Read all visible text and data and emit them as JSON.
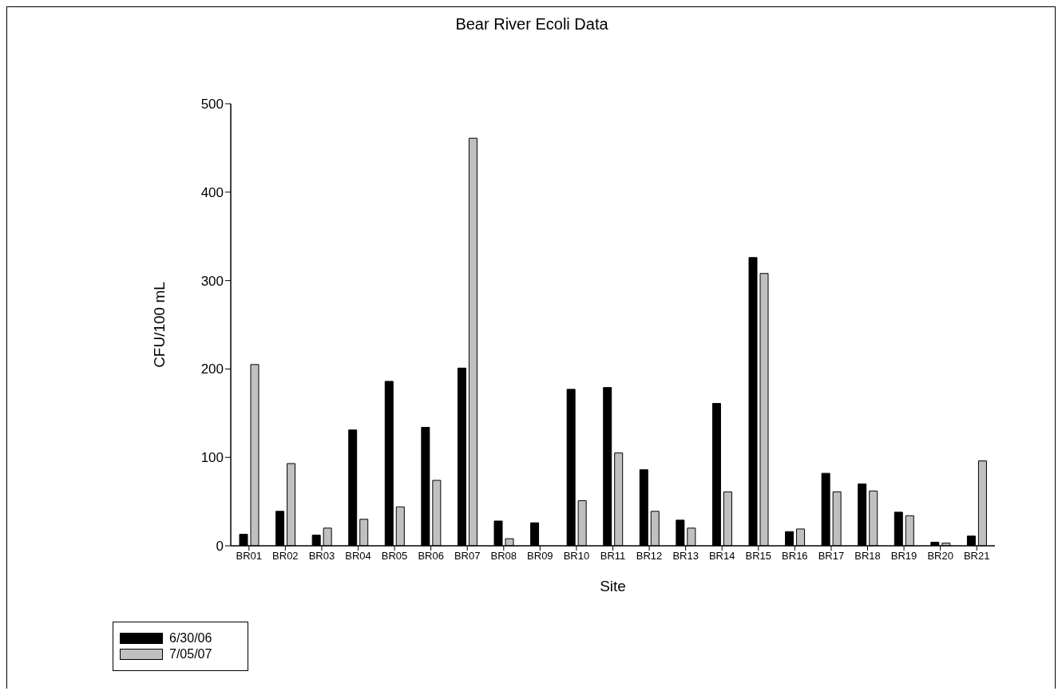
{
  "chart_data": {
    "type": "bar",
    "title": "Bear River Ecoli Data",
    "xlabel": "Site",
    "ylabel": "CFU/100 mL",
    "categories": [
      "BR01",
      "BR02",
      "BR03",
      "BR04",
      "BR05",
      "BR06",
      "BR07",
      "BR08",
      "BR09",
      "BR10",
      "BR11",
      "BR12",
      "BR13",
      "BR14",
      "BR15",
      "BR16",
      "BR17",
      "BR18",
      "BR19",
      "BR20",
      "BR21"
    ],
    "series": [
      {
        "name": "6/30/06",
        "color": "#000000",
        "values": [
          13,
          39,
          12,
          131,
          186,
          134,
          201,
          28,
          26,
          177,
          179,
          86,
          29,
          161,
          326,
          16,
          82,
          70,
          38,
          4,
          11
        ]
      },
      {
        "name": "7/05/07",
        "color": "#c0c0c0",
        "values": [
          205,
          93,
          20,
          30,
          44,
          74,
          461,
          8,
          null,
          51,
          105,
          39,
          20,
          61,
          308,
          19,
          61,
          62,
          34,
          3,
          96
        ]
      }
    ],
    "ylim": [
      0,
      500
    ],
    "yticks": [
      0,
      100,
      200,
      300,
      400,
      500
    ],
    "grid": false,
    "legend": "bottom left"
  }
}
